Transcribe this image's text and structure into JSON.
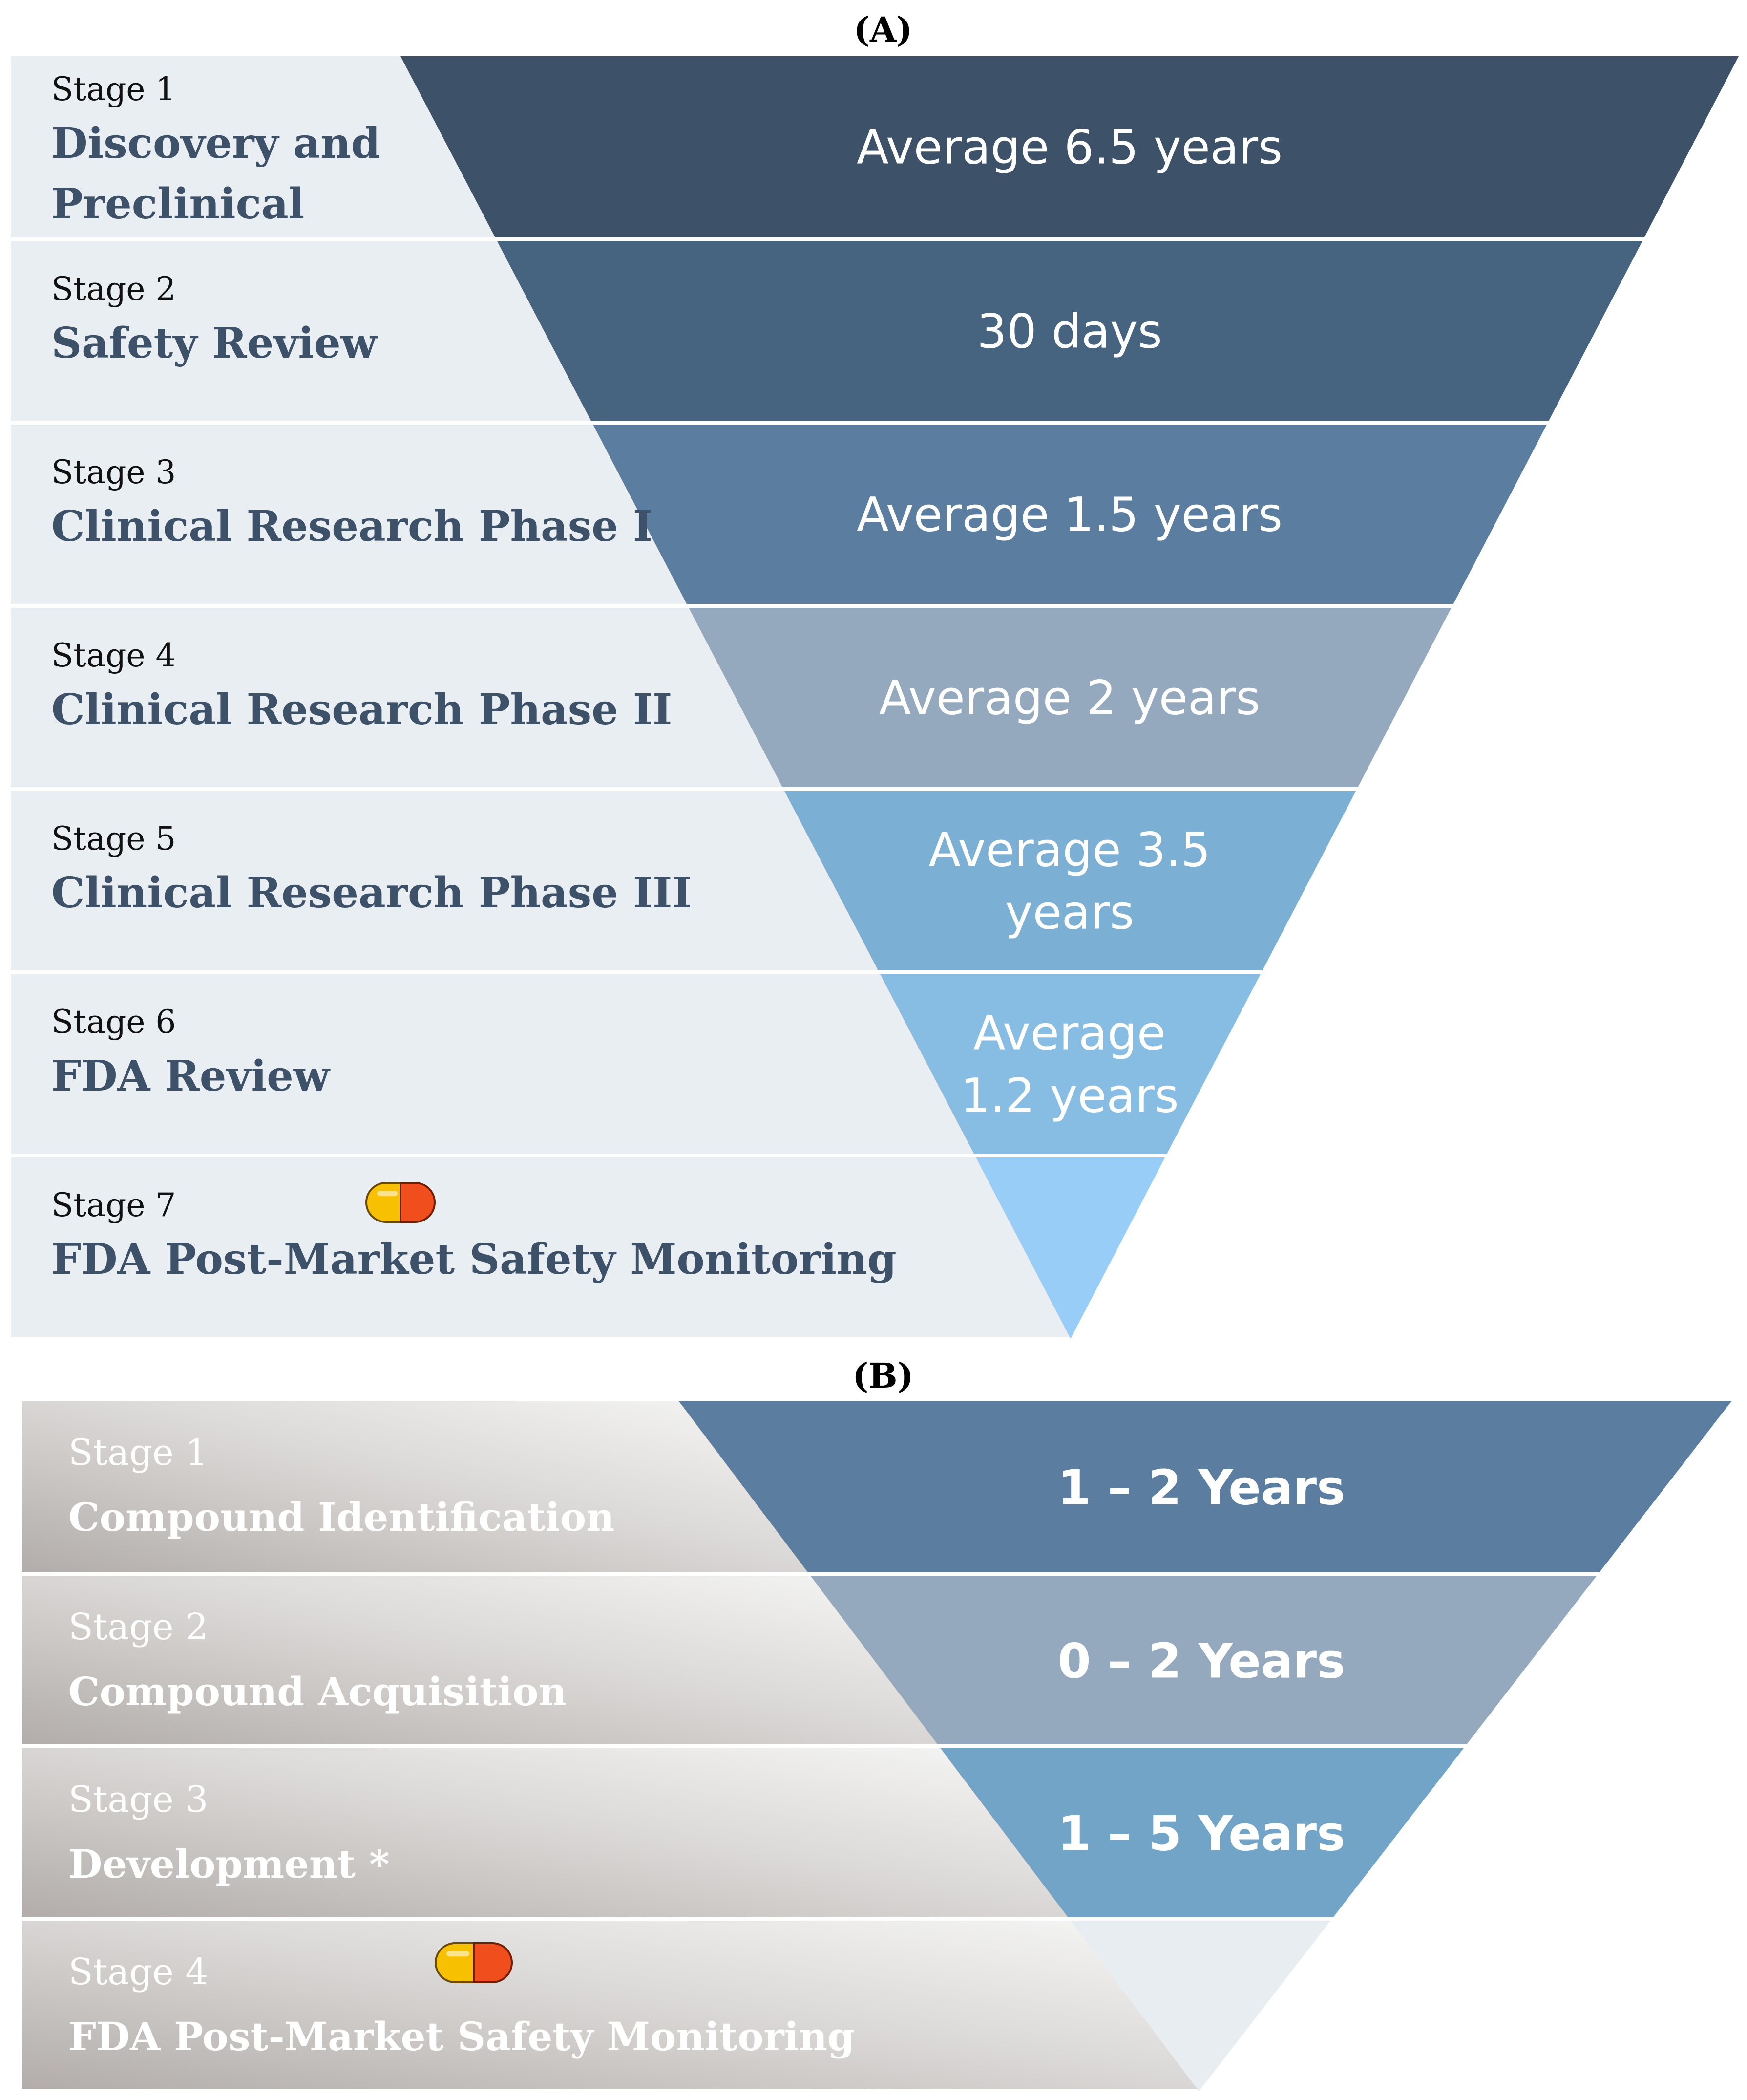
{
  "panel_a": {
    "label": "(A)",
    "stages": [
      {
        "stage": "Stage 1",
        "title_lines": [
          "Discovery and",
          "Preclinical"
        ],
        "duration_lines": [
          "Average 6.5 years"
        ],
        "color": "#3d5169"
      },
      {
        "stage": "Stage 2",
        "title_lines": [
          "Safety Review"
        ],
        "duration_lines": [
          "30 days"
        ],
        "color": "#466480"
      },
      {
        "stage": "Stage 3",
        "title_lines": [
          "Clinical Research Phase I"
        ],
        "duration_lines": [
          "Average 1.5 years"
        ],
        "color": "#5a7da0"
      },
      {
        "stage": "Stage 4",
        "title_lines": [
          "Clinical Research Phase II"
        ],
        "duration_lines": [
          "Average 2 years"
        ],
        "color": "#94a9be"
      },
      {
        "stage": "Stage 5",
        "title_lines": [
          "Clinical Research Phase III"
        ],
        "duration_lines": [
          "Average 3.5",
          "years"
        ],
        "color": "#7bafd3"
      },
      {
        "stage": "Stage 6",
        "title_lines": [
          "FDA Review"
        ],
        "duration_lines": [
          "Average",
          "1.2 years"
        ],
        "color": "#88bde3"
      },
      {
        "stage": "Stage 7",
        "title_lines": [
          "FDA Post-Market Safety Monitoring"
        ],
        "duration_lines": [],
        "color": "#97cdf6",
        "pill_icon": true
      }
    ]
  },
  "panel_b": {
    "label": "(B)",
    "stages": [
      {
        "stage": "Stage 1",
        "title_lines": [
          "Compound Identification"
        ],
        "duration_lines": [
          "1 – 2 Years"
        ],
        "color": "#5b7da0"
      },
      {
        "stage": "Stage 2",
        "title_lines": [
          "Compound Acquisition"
        ],
        "duration_lines": [
          "0 – 2 Years"
        ],
        "color": "#94a9be"
      },
      {
        "stage": "Stage 3",
        "title_lines": [
          "Development *"
        ],
        "duration_lines": [
          "1 – 5 Years"
        ],
        "color": "#72a4c8"
      },
      {
        "stage": "Stage 4",
        "title_lines": [
          "FDA Post-Market Safety Monitoring"
        ],
        "duration_lines": [],
        "color": "#e8edf2",
        "pill_icon": true
      }
    ]
  },
  "colors": {
    "panel_a_text": "#3d5169",
    "panel_a_bg": "#e9eef3",
    "panel_b_text": "#ffffff",
    "pill_left": "#f7c000",
    "pill_right": "#f04e1c"
  }
}
